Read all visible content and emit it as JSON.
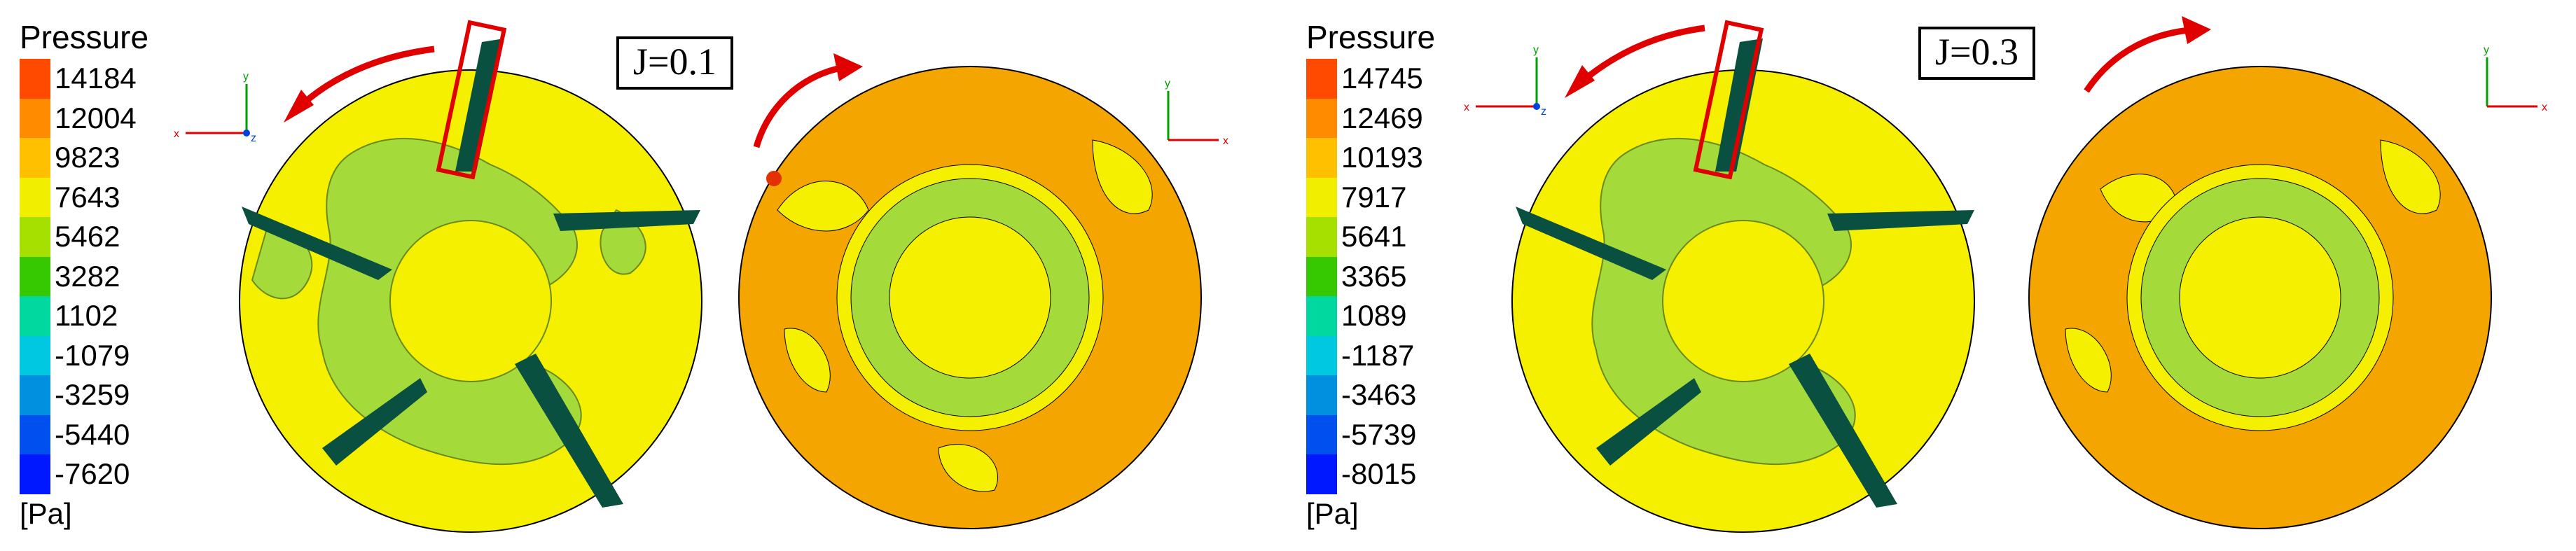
{
  "panels": [
    {
      "legend": {
        "title": "Pressure",
        "unit": "[Pa]",
        "labels": [
          "14184",
          "12004",
          "9823",
          "7643",
          "5462",
          "3282",
          "1102",
          "-1079",
          "-3259",
          "-5440",
          "-7620"
        ]
      },
      "case_label": "J=0.1"
    },
    {
      "legend": {
        "title": "Pressure",
        "unit": "[Pa]",
        "labels": [
          "14745",
          "12469",
          "10193",
          "7917",
          "5641",
          "3365",
          "1089",
          "-1187",
          "-3463",
          "-5739",
          "-8015"
        ]
      },
      "case_label": "J=0.3"
    }
  ],
  "colors": {
    "scale": [
      "#ff4a00",
      "#ff8c00",
      "#ffc000",
      "#f2ee00",
      "#a6e000",
      "#36c800",
      "#00d8a0",
      "#00c8e0",
      "#0090e0",
      "#0050f0",
      "#0018ff"
    ],
    "annotation": "#e00000",
    "contour_yellow": "#f5f000",
    "contour_green": "#a4da3a",
    "contour_orange": "#f5a500",
    "contour_dark": "#0a5040"
  },
  "axes": {
    "x": "x",
    "y": "y",
    "z": "z"
  }
}
